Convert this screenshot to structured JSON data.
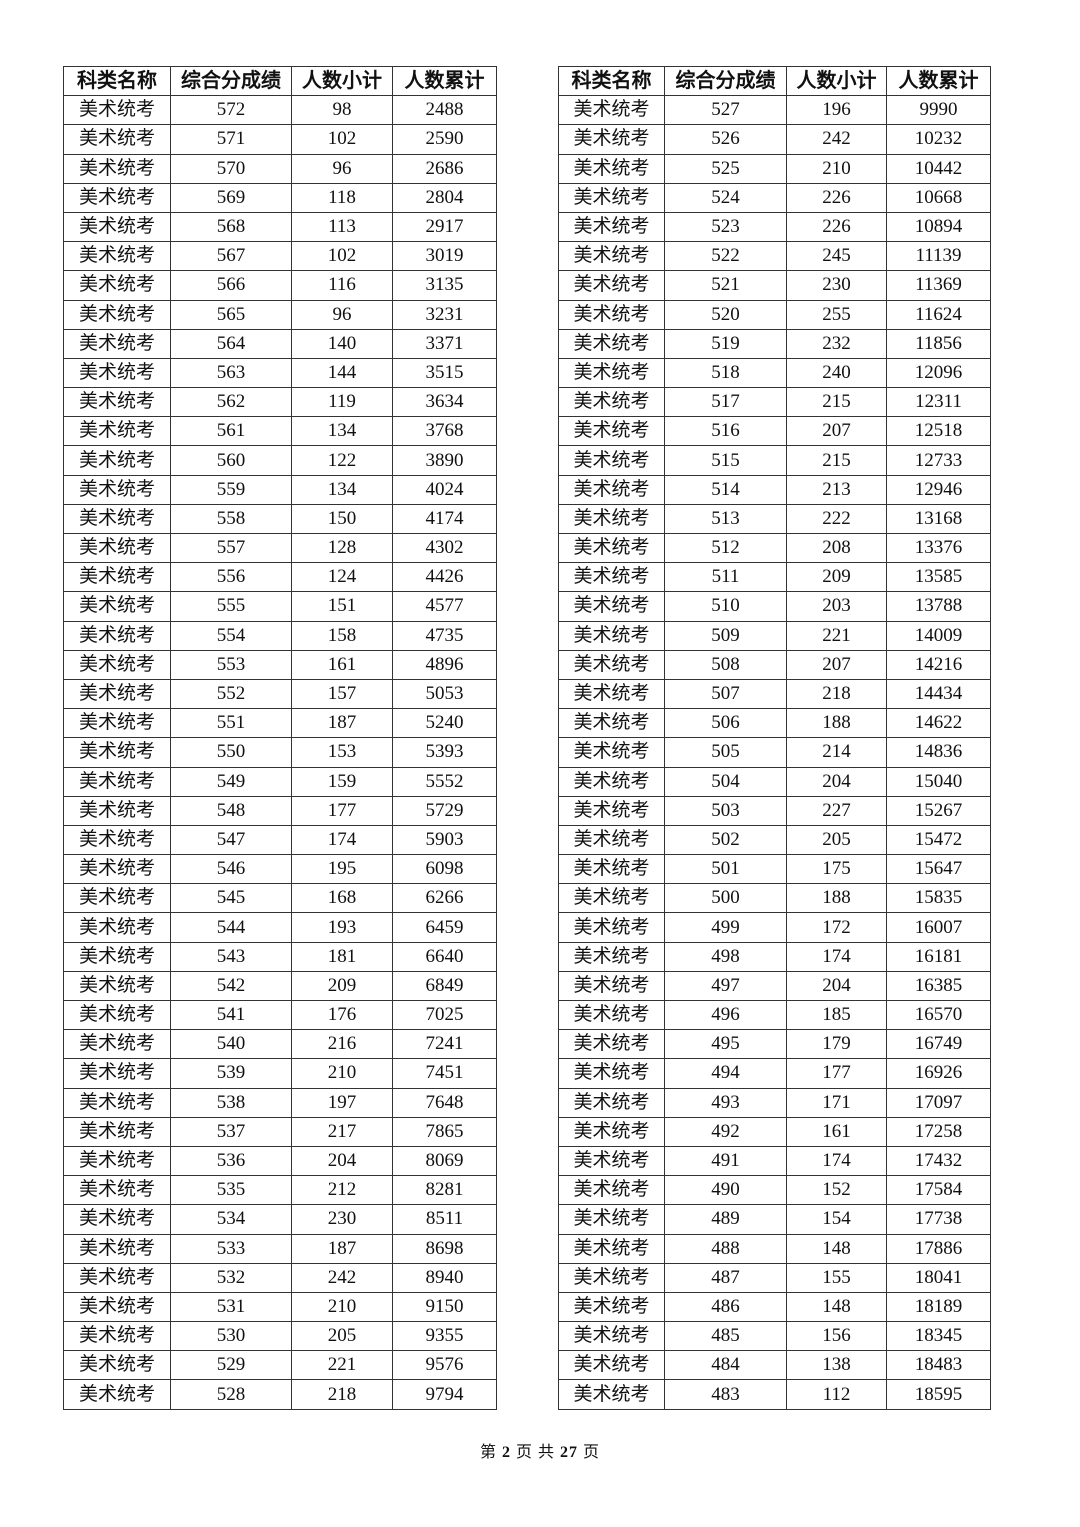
{
  "headers": [
    "科类名称",
    "综合分成绩",
    "人数小计",
    "人数累计"
  ],
  "category": "美术统考",
  "left_rows": [
    [
      572,
      98,
      2488
    ],
    [
      571,
      102,
      2590
    ],
    [
      570,
      96,
      2686
    ],
    [
      569,
      118,
      2804
    ],
    [
      568,
      113,
      2917
    ],
    [
      567,
      102,
      3019
    ],
    [
      566,
      116,
      3135
    ],
    [
      565,
      96,
      3231
    ],
    [
      564,
      140,
      3371
    ],
    [
      563,
      144,
      3515
    ],
    [
      562,
      119,
      3634
    ],
    [
      561,
      134,
      3768
    ],
    [
      560,
      122,
      3890
    ],
    [
      559,
      134,
      4024
    ],
    [
      558,
      150,
      4174
    ],
    [
      557,
      128,
      4302
    ],
    [
      556,
      124,
      4426
    ],
    [
      555,
      151,
      4577
    ],
    [
      554,
      158,
      4735
    ],
    [
      553,
      161,
      4896
    ],
    [
      552,
      157,
      5053
    ],
    [
      551,
      187,
      5240
    ],
    [
      550,
      153,
      5393
    ],
    [
      549,
      159,
      5552
    ],
    [
      548,
      177,
      5729
    ],
    [
      547,
      174,
      5903
    ],
    [
      546,
      195,
      6098
    ],
    [
      545,
      168,
      6266
    ],
    [
      544,
      193,
      6459
    ],
    [
      543,
      181,
      6640
    ],
    [
      542,
      209,
      6849
    ],
    [
      541,
      176,
      7025
    ],
    [
      540,
      216,
      7241
    ],
    [
      539,
      210,
      7451
    ],
    [
      538,
      197,
      7648
    ],
    [
      537,
      217,
      7865
    ],
    [
      536,
      204,
      8069
    ],
    [
      535,
      212,
      8281
    ],
    [
      534,
      230,
      8511
    ],
    [
      533,
      187,
      8698
    ],
    [
      532,
      242,
      8940
    ],
    [
      531,
      210,
      9150
    ],
    [
      530,
      205,
      9355
    ],
    [
      529,
      221,
      9576
    ],
    [
      528,
      218,
      9794
    ]
  ],
  "right_rows": [
    [
      527,
      196,
      9990
    ],
    [
      526,
      242,
      10232
    ],
    [
      525,
      210,
      10442
    ],
    [
      524,
      226,
      10668
    ],
    [
      523,
      226,
      10894
    ],
    [
      522,
      245,
      11139
    ],
    [
      521,
      230,
      11369
    ],
    [
      520,
      255,
      11624
    ],
    [
      519,
      232,
      11856
    ],
    [
      518,
      240,
      12096
    ],
    [
      517,
      215,
      12311
    ],
    [
      516,
      207,
      12518
    ],
    [
      515,
      215,
      12733
    ],
    [
      514,
      213,
      12946
    ],
    [
      513,
      222,
      13168
    ],
    [
      512,
      208,
      13376
    ],
    [
      511,
      209,
      13585
    ],
    [
      510,
      203,
      13788
    ],
    [
      509,
      221,
      14009
    ],
    [
      508,
      207,
      14216
    ],
    [
      507,
      218,
      14434
    ],
    [
      506,
      188,
      14622
    ],
    [
      505,
      214,
      14836
    ],
    [
      504,
      204,
      15040
    ],
    [
      503,
      227,
      15267
    ],
    [
      502,
      205,
      15472
    ],
    [
      501,
      175,
      15647
    ],
    [
      500,
      188,
      15835
    ],
    [
      499,
      172,
      16007
    ],
    [
      498,
      174,
      16181
    ],
    [
      497,
      204,
      16385
    ],
    [
      496,
      185,
      16570
    ],
    [
      495,
      179,
      16749
    ],
    [
      494,
      177,
      16926
    ],
    [
      493,
      171,
      17097
    ],
    [
      492,
      161,
      17258
    ],
    [
      491,
      174,
      17432
    ],
    [
      490,
      152,
      17584
    ],
    [
      489,
      154,
      17738
    ],
    [
      488,
      148,
      17886
    ],
    [
      487,
      155,
      18041
    ],
    [
      486,
      148,
      18189
    ],
    [
      485,
      156,
      18345
    ],
    [
      484,
      138,
      18483
    ],
    [
      483,
      112,
      18595
    ]
  ],
  "footer": {
    "prefix": "第",
    "page": "2",
    "middle": "页 共",
    "total": "27",
    "suffix": "页"
  }
}
